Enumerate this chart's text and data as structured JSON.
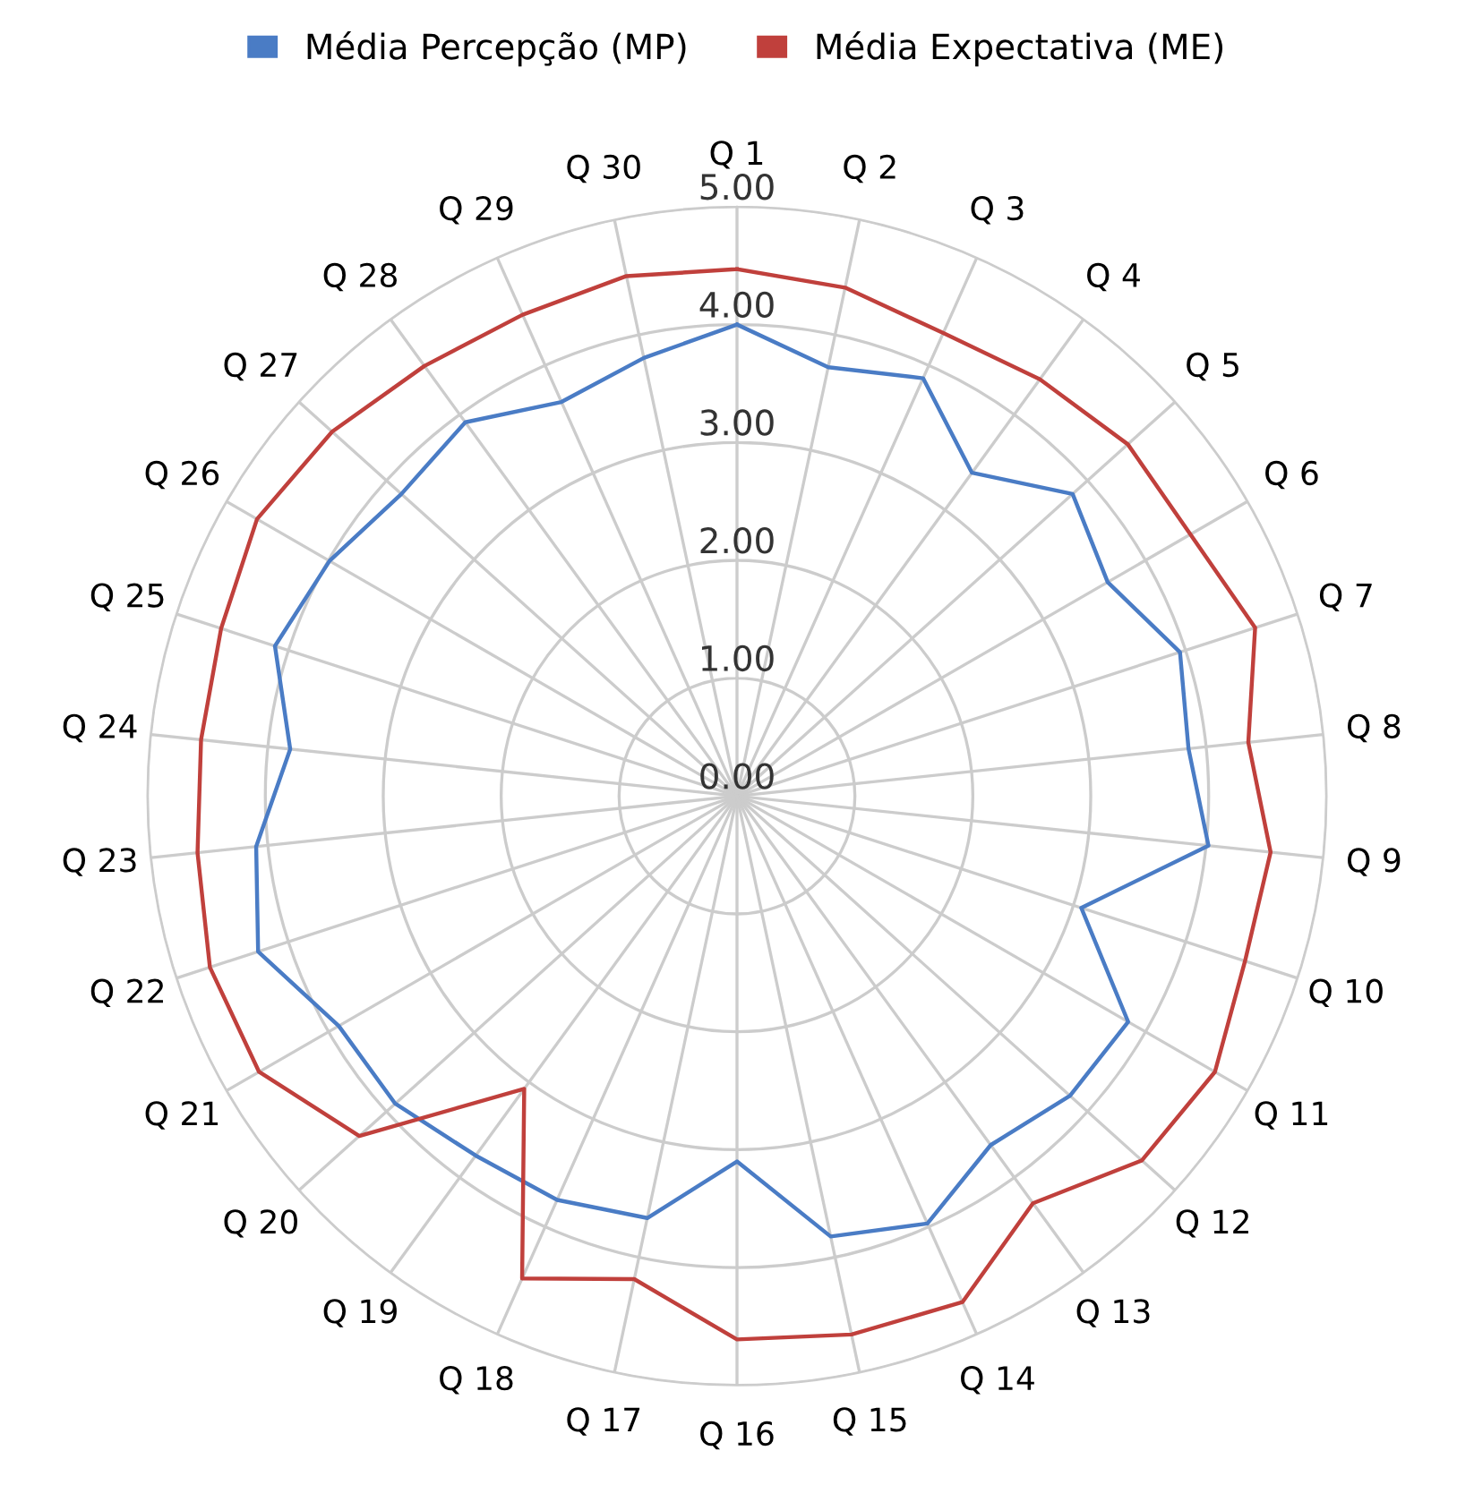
{
  "chart_data": {
    "type": "radar",
    "categories": [
      "Q 1",
      "Q 2",
      "Q 3",
      "Q 4",
      "Q 5",
      "Q 6",
      "Q 7",
      "Q 8",
      "Q 9",
      "Q 10",
      "Q 11",
      "Q 12",
      "Q 13",
      "Q 14",
      "Q 15",
      "Q 16",
      "Q 17",
      "Q 18",
      "Q 19",
      "Q 20",
      "Q 21",
      "Q 22",
      "Q 23",
      "Q 24",
      "Q 25",
      "Q 26",
      "Q 27",
      "Q 28",
      "Q 29",
      "Q 30"
    ],
    "series": [
      {
        "name": "Média Percepção (MP)",
        "color": "#4a7cc5",
        "values": [
          4.0,
          3.72,
          3.88,
          3.39,
          3.83,
          3.63,
          3.95,
          3.85,
          4.02,
          3.07,
          3.83,
          3.8,
          3.66,
          3.97,
          3.82,
          3.1,
          3.66,
          3.75,
          3.77,
          3.9,
          3.9,
          4.27,
          4.1,
          3.81,
          4.12,
          3.99,
          3.83,
          3.92,
          3.66,
          3.8
        ]
      },
      {
        "name": "Média Expectativa (ME)",
        "color": "#c0403c",
        "values": [
          4.47,
          4.41,
          4.3,
          4.37,
          4.46,
          4.44,
          4.62,
          4.36,
          4.55,
          4.53,
          4.68,
          4.62,
          4.27,
          4.7,
          4.67,
          4.61,
          4.19,
          4.48,
          3.07,
          4.31,
          4.68,
          4.7,
          4.6,
          4.57,
          4.6,
          4.7,
          4.62,
          4.51,
          4.47,
          4.51
        ]
      }
    ],
    "ylim": [
      0,
      5
    ],
    "yticks": [
      {
        "value": 0,
        "label": "0.00"
      },
      {
        "value": 1,
        "label": "1.00"
      },
      {
        "value": 2,
        "label": "2.00"
      },
      {
        "value": 3,
        "label": "3.00"
      },
      {
        "value": 4,
        "label": "4.00"
      },
      {
        "value": 5,
        "label": "5.00"
      }
    ],
    "grid": true,
    "legend": "top",
    "marker": "none"
  }
}
